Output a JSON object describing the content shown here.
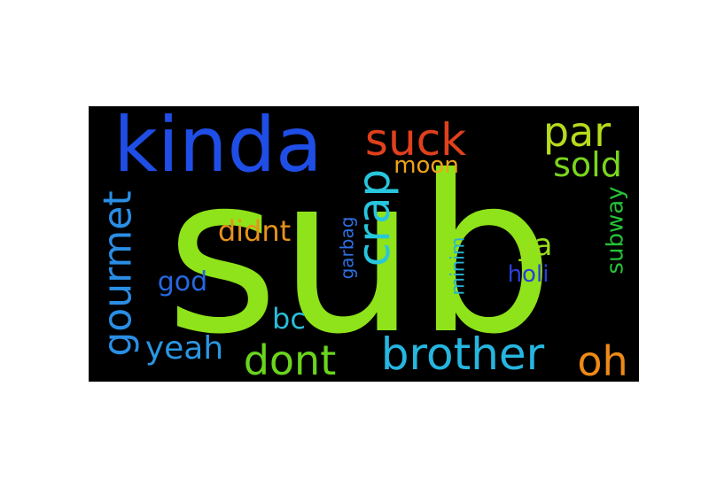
{
  "wordcloud": {
    "background": "#000000",
    "words": [
      {
        "text": "sub",
        "color": "#8fe31a",
        "orientation": "horizontal"
      },
      {
        "text": "kinda",
        "color": "#1f4ee6",
        "orientation": "horizontal"
      },
      {
        "text": "suck",
        "color": "#e0401c",
        "orientation": "horizontal"
      },
      {
        "text": "par",
        "color": "#b6db1c",
        "orientation": "horizontal"
      },
      {
        "text": "sold",
        "color": "#7ad51d",
        "orientation": "horizontal"
      },
      {
        "text": "moon",
        "color": "#f0a218",
        "orientation": "horizontal"
      },
      {
        "text": "crap",
        "color": "#27c6dd",
        "orientation": "vertical"
      },
      {
        "text": "gourmet",
        "color": "#2a8ee6",
        "orientation": "vertical"
      },
      {
        "text": "didnt",
        "color": "#e8921a",
        "orientation": "horizontal"
      },
      {
        "text": "garbag",
        "color": "#2f6fe0",
        "orientation": "vertical"
      },
      {
        "text": "minim",
        "color": "#27b3d3",
        "orientation": "vertical"
      },
      {
        "text": "ya",
        "color": "#9bde1b",
        "orientation": "horizontal"
      },
      {
        "text": "subway",
        "color": "#25c237",
        "orientation": "vertical"
      },
      {
        "text": "holi",
        "color": "#2b3fd8",
        "orientation": "horizontal"
      },
      {
        "text": "god",
        "color": "#2668e0",
        "orientation": "horizontal"
      },
      {
        "text": "bc",
        "color": "#29bcd9",
        "orientation": "horizontal"
      },
      {
        "text": "yeah",
        "color": "#2a96e2",
        "orientation": "horizontal"
      },
      {
        "text": "dont",
        "color": "#6ad41e",
        "orientation": "horizontal"
      },
      {
        "text": "brother",
        "color": "#25b6e0",
        "orientation": "horizontal"
      },
      {
        "text": "oh",
        "color": "#ee8a16",
        "orientation": "horizontal"
      }
    ]
  }
}
